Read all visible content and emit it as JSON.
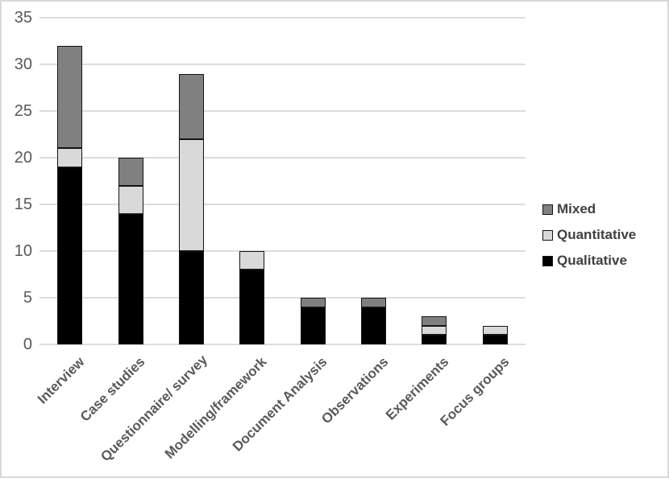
{
  "figure": {
    "background_color": "#ffffff",
    "border_color": "#d9d9d9"
  },
  "chart_data": {
    "type": "bar",
    "stacked": true,
    "title": "",
    "xlabel": "",
    "ylabel": "",
    "categories": [
      "Interview",
      "Case studies",
      "Questionnaire/ survey",
      "Modelling/framework",
      "Document Analysis",
      "Observations",
      "Experiments",
      "Focus groups"
    ],
    "series": [
      {
        "name": "Qualitative",
        "color": "#000000",
        "values": [
          19,
          14,
          10,
          8,
          4,
          4,
          1,
          1
        ]
      },
      {
        "name": "Quantitative",
        "color": "#d9d9d9",
        "values": [
          2,
          3,
          12,
          2,
          0,
          0,
          1,
          1
        ]
      },
      {
        "name": "Mixed",
        "color": "#808080",
        "values": [
          11,
          3,
          7,
          0,
          1,
          1,
          1,
          0
        ]
      }
    ],
    "stack_totals": [
      32,
      20,
      29,
      10,
      5,
      5,
      3,
      2
    ],
    "ylim": [
      0,
      35
    ],
    "yticks": [
      "0",
      "5",
      "10",
      "15",
      "20",
      "25",
      "30",
      "35"
    ],
    "grid": true,
    "gridline_color": "#dcdcdc",
    "bar_border_color": "#141414",
    "axis_label_color": "#595959",
    "x_label_rotation_deg": -45,
    "legend_position": "right",
    "legend": [
      {
        "label": "Mixed",
        "color": "#808080"
      },
      {
        "label": "Quantitative",
        "color": "#d9d9d9"
      },
      {
        "label": "Qualitative",
        "color": "#000000"
      }
    ]
  }
}
